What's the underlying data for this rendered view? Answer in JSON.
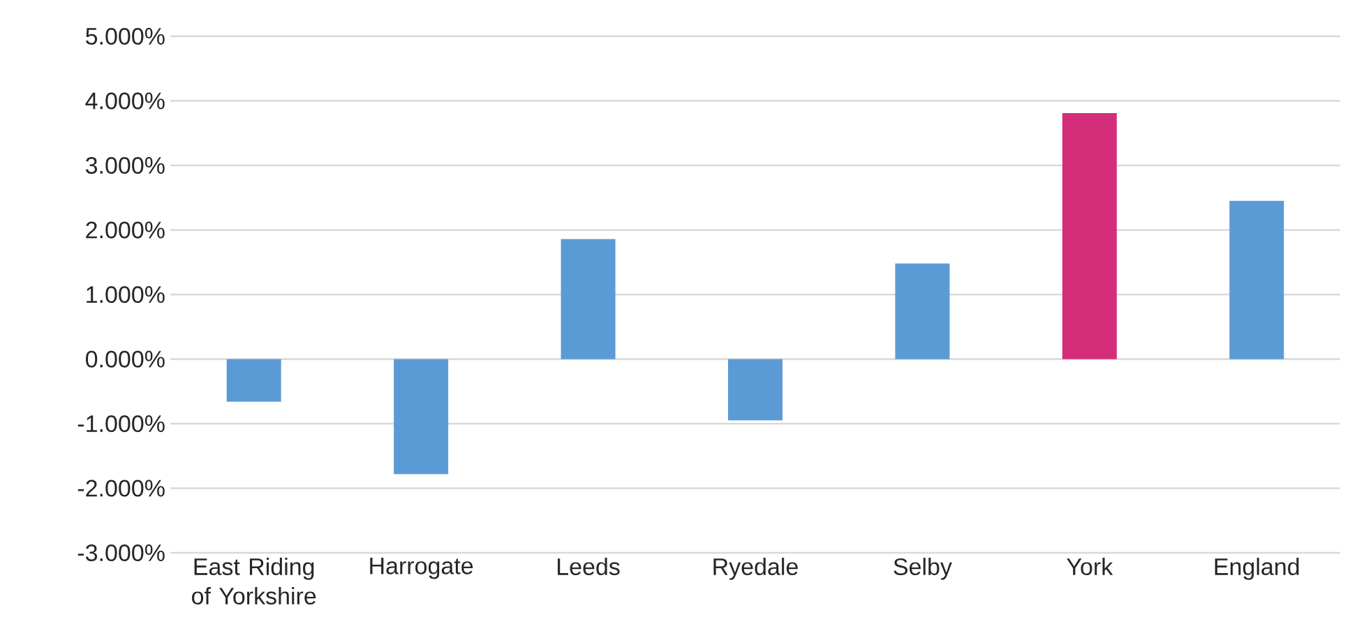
{
  "chart_data": {
    "type": "bar",
    "categories": [
      "East Riding of Yorkshire",
      "Harrogate",
      "Leeds",
      "Ryedale",
      "Selby",
      "York",
      "England"
    ],
    "values": [
      -0.66,
      -1.78,
      1.86,
      -0.95,
      1.48,
      3.81,
      2.45
    ],
    "colors": [
      "#5b9bd5",
      "#5b9bd5",
      "#5b9bd5",
      "#5b9bd5",
      "#5b9bd5",
      "#d42e7a",
      "#5b9bd5"
    ],
    "ylim": [
      -3,
      5
    ],
    "yticks": [
      {
        "value": -3,
        "label": "-3.000%"
      },
      {
        "value": -2,
        "label": "-2.000%"
      },
      {
        "value": -1,
        "label": "-1.000%"
      },
      {
        "value": 0,
        "label": "0.000%"
      },
      {
        "value": 1,
        "label": "1.000%"
      },
      {
        "value": 2,
        "label": "2.000%"
      },
      {
        "value": 3,
        "label": "3.000%"
      },
      {
        "value": 4,
        "label": "4.000%"
      },
      {
        "value": 5,
        "label": "5.000%"
      }
    ],
    "grid": "y"
  }
}
